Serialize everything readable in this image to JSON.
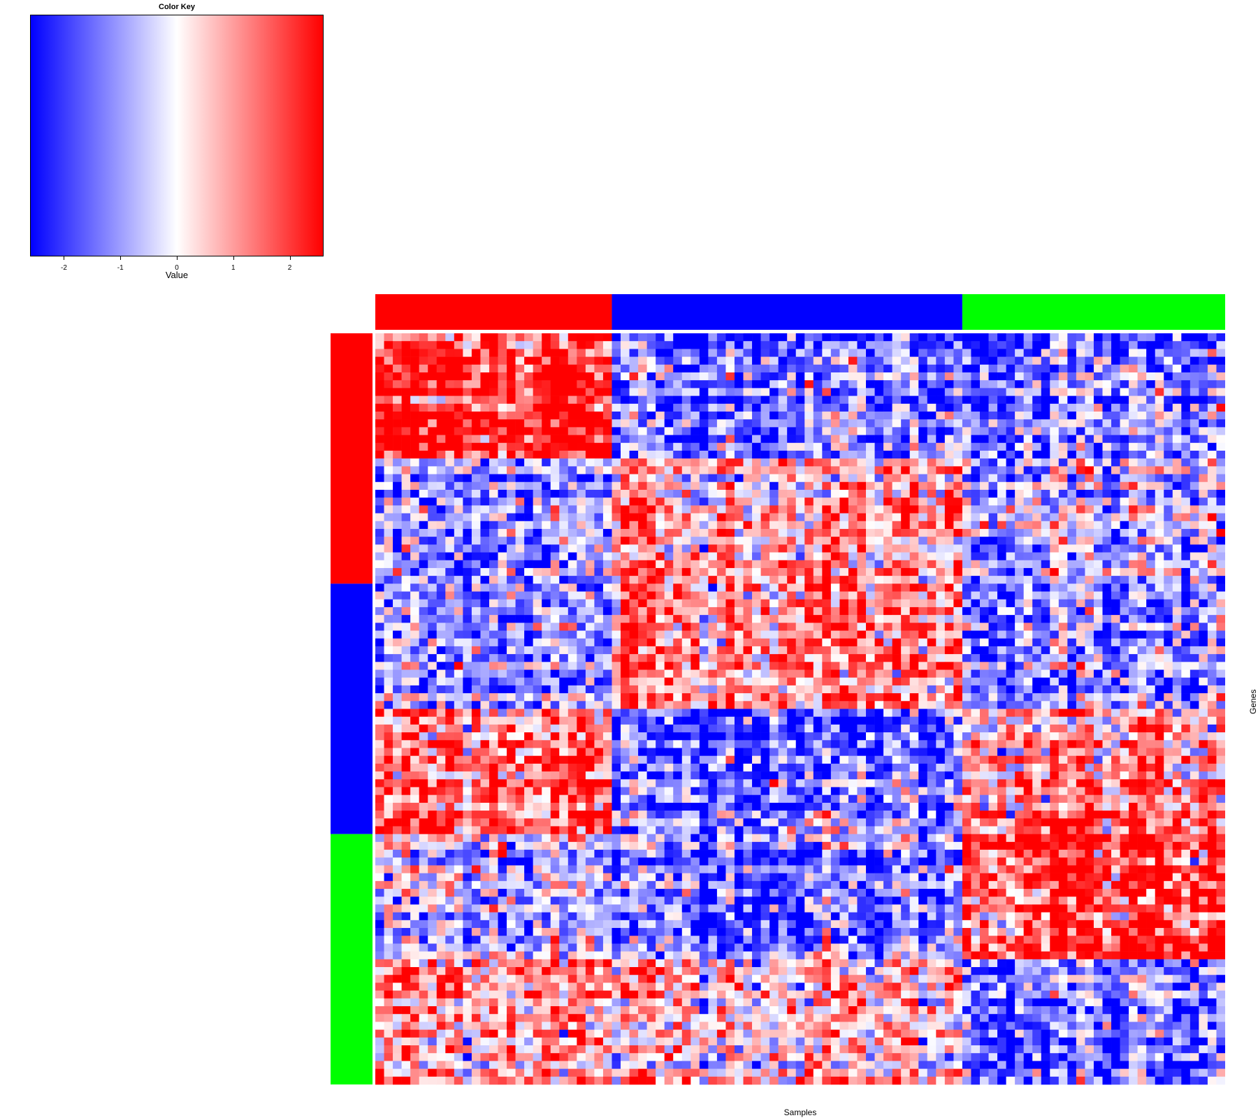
{
  "chart_data": {
    "type": "heatmap",
    "color_key": {
      "title": "Color Key",
      "xlabel": "Value",
      "range": [
        -2.6,
        2.6
      ],
      "ticks": [
        "-2",
        "-1",
        "0",
        "1",
        "2"
      ],
      "tick_values": [
        -2,
        -1,
        0,
        1,
        2
      ],
      "colors": [
        "#0000ff",
        "#ffffff",
        "#ff0000"
      ]
    },
    "xlabel": "Samples",
    "ylabel": "Genes",
    "sample_groups": [
      {
        "color": "#ff0000",
        "n_columns": 27
      },
      {
        "color": "#0000ff",
        "n_columns": 40
      },
      {
        "color": "#00ff00",
        "n_columns": 30
      }
    ],
    "gene_groups": [
      {
        "color": "#ff0000",
        "subblocks": 2
      },
      {
        "color": "#0000ff",
        "subblocks": 2
      },
      {
        "color": "#00ff00",
        "subblocks": 2
      }
    ],
    "rows_per_subblock": 16,
    "block_means": [
      [
        2.3,
        -1.5,
        -1.5
      ],
      [
        -1.0,
        0.9,
        -0.6
      ],
      [
        -1.0,
        1.4,
        -1.1
      ],
      [
        1.5,
        -1.5,
        1.1
      ],
      [
        -0.5,
        -1.4,
        2.0
      ],
      [
        1.0,
        0.5,
        -1.5
      ]
    ],
    "noise_sd": 1.1
  }
}
